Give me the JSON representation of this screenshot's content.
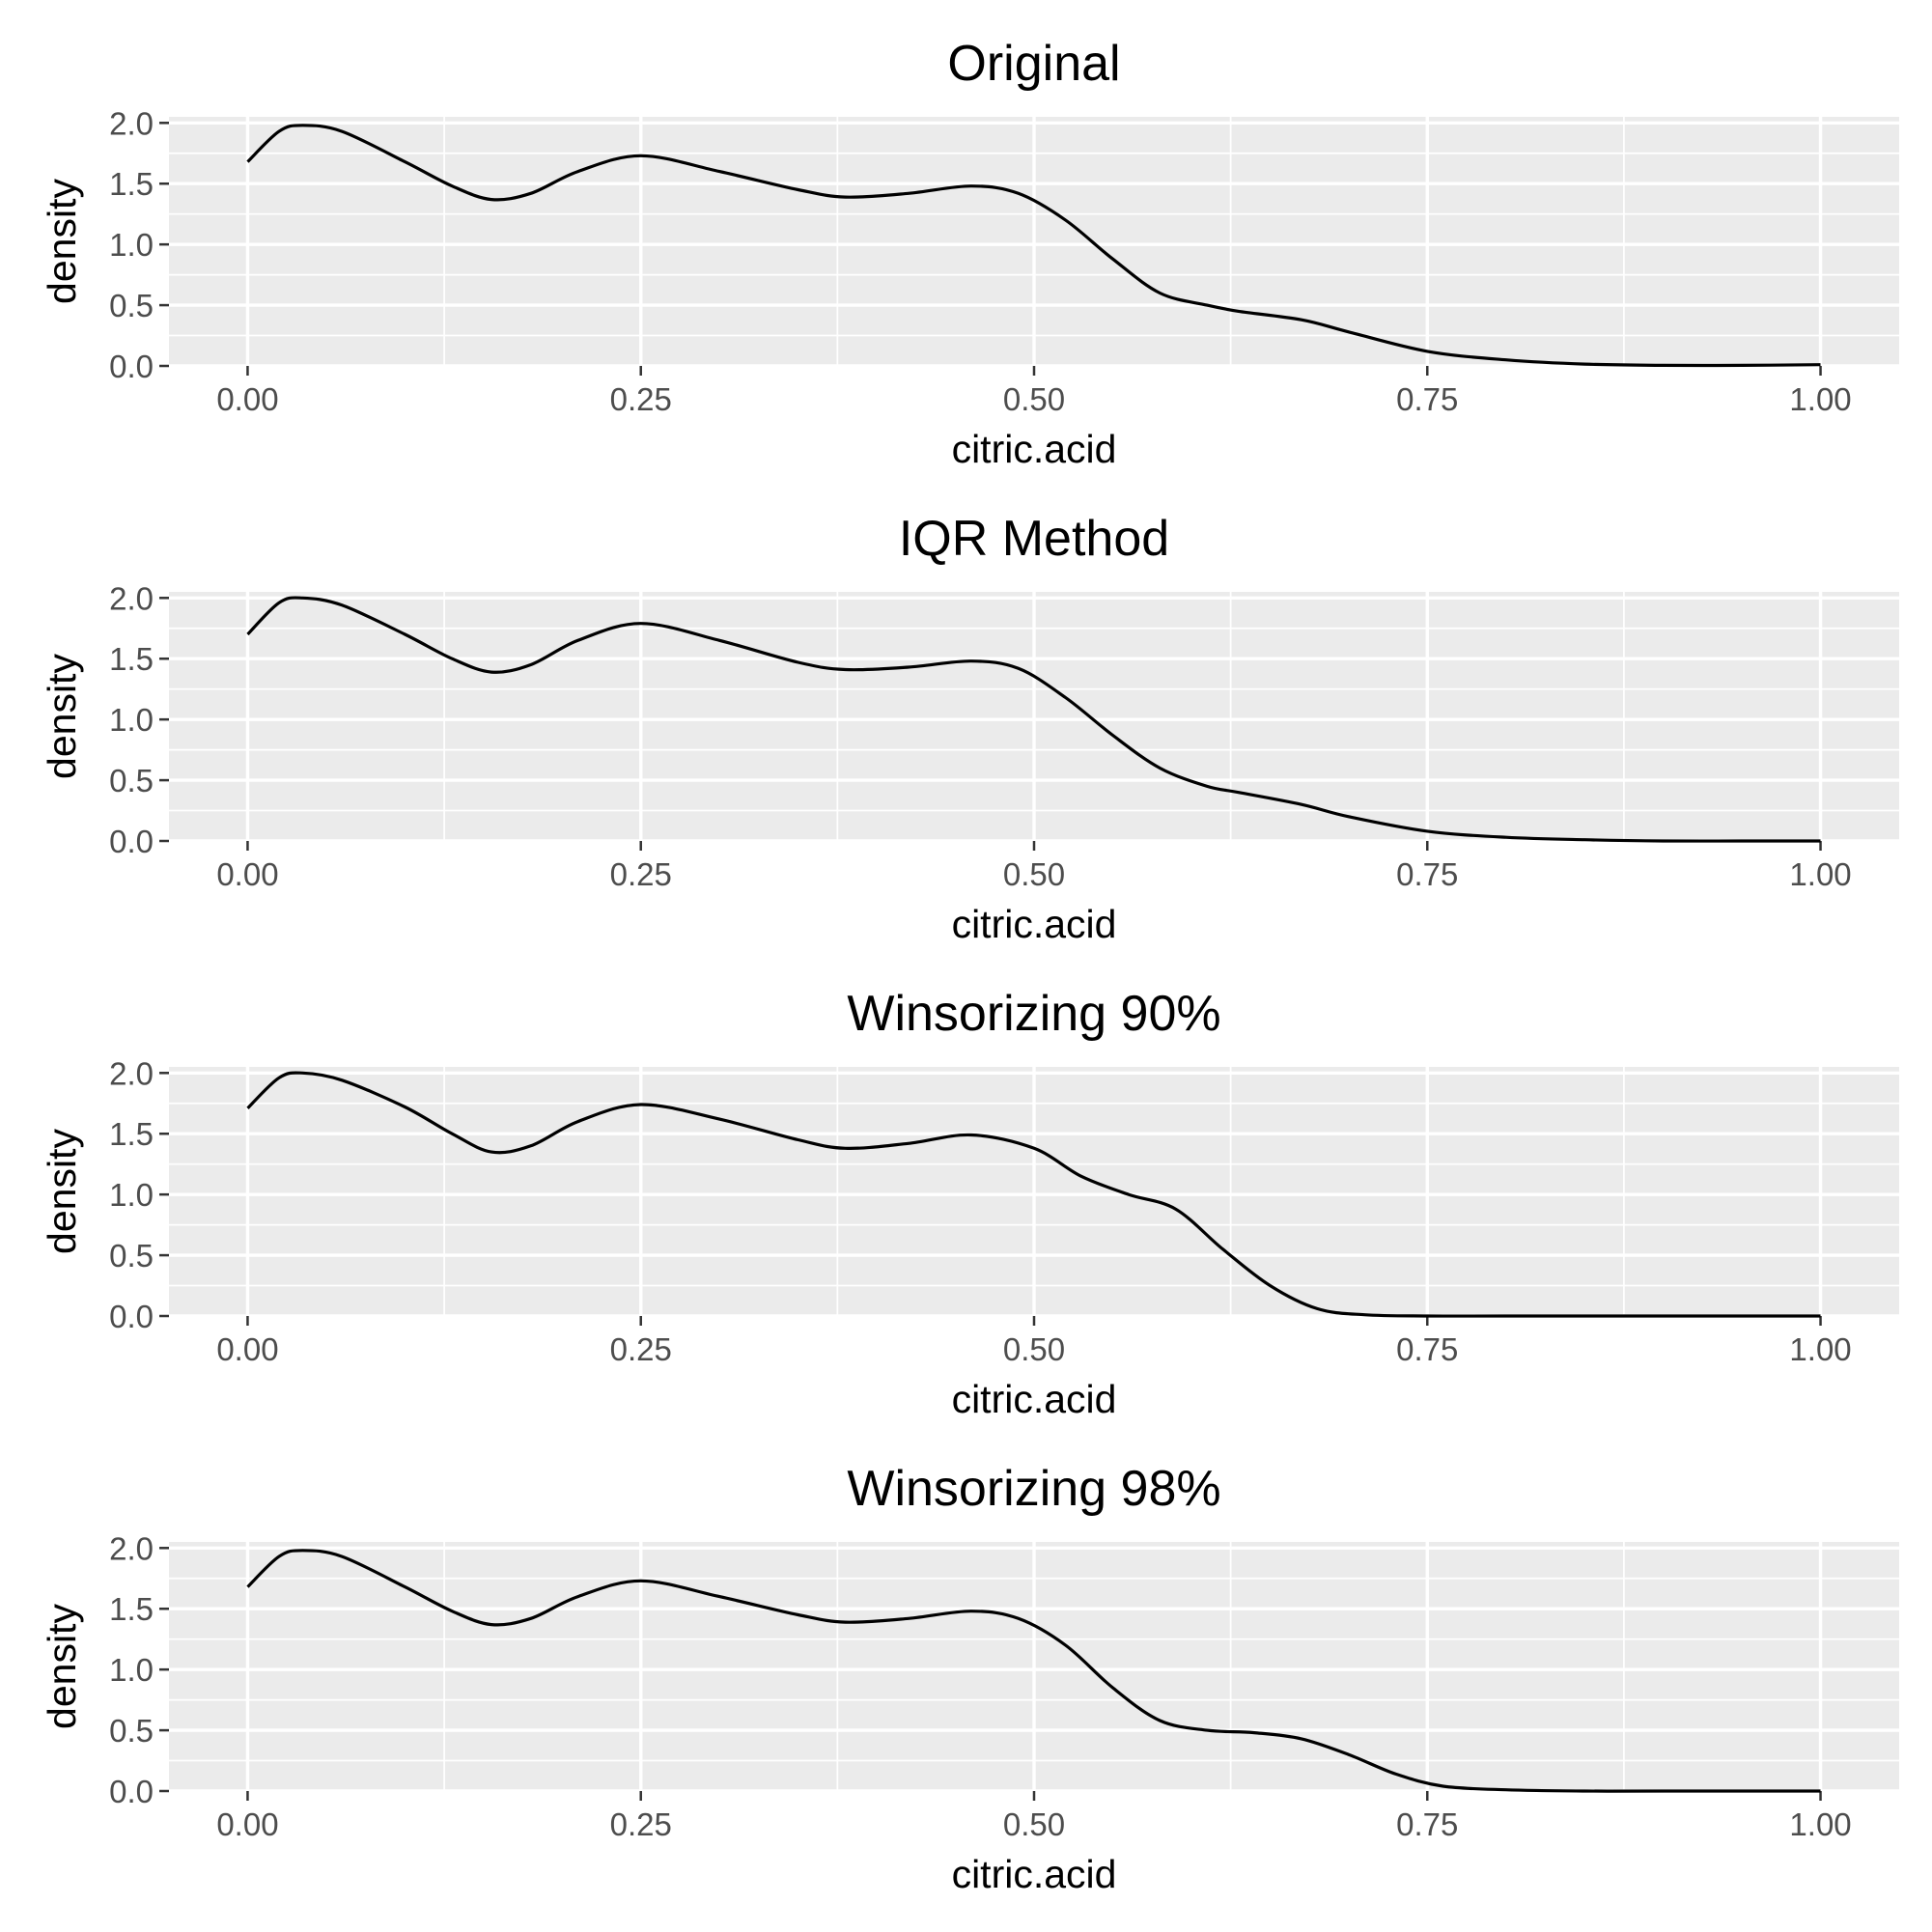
{
  "chart_data": [
    {
      "type": "line",
      "title": "Original",
      "xlabel": "citric.acid",
      "ylabel": "density",
      "xlim": [
        0,
        1
      ],
      "ylim": [
        0,
        2.05
      ],
      "x_ticks": [
        "0.00",
        "0.25",
        "0.50",
        "0.75",
        "1.00"
      ],
      "y_ticks": [
        "0.0",
        "0.5",
        "1.0",
        "1.5",
        "2.0"
      ],
      "grid": true,
      "series": [
        {
          "x": [
            0,
            0.02,
            0.035,
            0.06,
            0.1,
            0.13,
            0.155,
            0.18,
            0.21,
            0.25,
            0.3,
            0.35,
            0.38,
            0.42,
            0.46,
            0.49,
            0.52,
            0.55,
            0.58,
            0.61,
            0.63,
            0.67,
            0.7,
            0.75,
            0.8,
            0.85,
            0.9,
            0.95,
            1.0
          ],
          "y": [
            1.68,
            1.93,
            1.98,
            1.93,
            1.68,
            1.48,
            1.37,
            1.42,
            1.6,
            1.73,
            1.6,
            1.45,
            1.39,
            1.42,
            1.48,
            1.42,
            1.2,
            0.88,
            0.6,
            0.5,
            0.45,
            0.38,
            0.28,
            0.12,
            0.05,
            0.015,
            0.005,
            0.005,
            0.01
          ]
        }
      ]
    },
    {
      "type": "line",
      "title": "IQR Method",
      "xlabel": "citric.acid",
      "ylabel": "density",
      "xlim": [
        0,
        1
      ],
      "ylim": [
        0,
        2.05
      ],
      "x_ticks": [
        "0.00",
        "0.25",
        "0.50",
        "0.75",
        "1.00"
      ],
      "y_ticks": [
        "0.0",
        "0.5",
        "1.0",
        "1.5",
        "2.0"
      ],
      "grid": true,
      "series": [
        {
          "x": [
            0,
            0.02,
            0.035,
            0.06,
            0.1,
            0.13,
            0.155,
            0.18,
            0.21,
            0.25,
            0.3,
            0.35,
            0.38,
            0.42,
            0.46,
            0.49,
            0.52,
            0.55,
            0.58,
            0.61,
            0.63,
            0.67,
            0.7,
            0.75,
            0.8,
            0.85,
            0.9,
            0.95,
            1.0
          ],
          "y": [
            1.7,
            1.96,
            2.0,
            1.94,
            1.7,
            1.5,
            1.39,
            1.45,
            1.65,
            1.79,
            1.65,
            1.47,
            1.41,
            1.43,
            1.48,
            1.42,
            1.18,
            0.87,
            0.6,
            0.45,
            0.4,
            0.3,
            0.2,
            0.08,
            0.03,
            0.01,
            0.0,
            0.0,
            0.0
          ]
        }
      ]
    },
    {
      "type": "line",
      "title": "Winsorizing 90%",
      "xlabel": "citric.acid",
      "ylabel": "density",
      "xlim": [
        0,
        1
      ],
      "ylim": [
        0,
        2.05
      ],
      "x_ticks": [
        "0.00",
        "0.25",
        "0.50",
        "0.75",
        "1.00"
      ],
      "y_ticks": [
        "0.0",
        "0.5",
        "1.0",
        "1.5",
        "2.0"
      ],
      "grid": true,
      "series": [
        {
          "x": [
            0,
            0.02,
            0.035,
            0.06,
            0.1,
            0.13,
            0.155,
            0.18,
            0.21,
            0.25,
            0.3,
            0.35,
            0.38,
            0.42,
            0.46,
            0.5,
            0.53,
            0.56,
            0.59,
            0.62,
            0.65,
            0.68,
            0.71,
            0.75,
            0.8,
            0.9,
            1.0
          ],
          "y": [
            1.71,
            1.96,
            2.0,
            1.94,
            1.72,
            1.5,
            1.35,
            1.4,
            1.6,
            1.74,
            1.62,
            1.45,
            1.38,
            1.42,
            1.49,
            1.38,
            1.15,
            1.0,
            0.88,
            0.55,
            0.25,
            0.06,
            0.01,
            0.0,
            0.0,
            0.0,
            0.0
          ]
        }
      ]
    },
    {
      "type": "line",
      "title": "Winsorizing 98%",
      "xlabel": "citric.acid",
      "ylabel": "density",
      "xlim": [
        0,
        1
      ],
      "ylim": [
        0,
        2.05
      ],
      "x_ticks": [
        "0.00",
        "0.25",
        "0.50",
        "0.75",
        "1.00"
      ],
      "y_ticks": [
        "0.0",
        "0.5",
        "1.0",
        "1.5",
        "2.0"
      ],
      "grid": true,
      "series": [
        {
          "x": [
            0,
            0.02,
            0.035,
            0.06,
            0.1,
            0.13,
            0.155,
            0.18,
            0.21,
            0.25,
            0.3,
            0.35,
            0.38,
            0.42,
            0.46,
            0.49,
            0.52,
            0.55,
            0.58,
            0.61,
            0.64,
            0.67,
            0.7,
            0.73,
            0.76,
            0.8,
            0.85,
            0.9,
            1.0
          ],
          "y": [
            1.68,
            1.93,
            1.98,
            1.93,
            1.68,
            1.48,
            1.37,
            1.42,
            1.6,
            1.73,
            1.6,
            1.45,
            1.39,
            1.42,
            1.48,
            1.42,
            1.2,
            0.85,
            0.58,
            0.5,
            0.48,
            0.43,
            0.3,
            0.14,
            0.04,
            0.01,
            0.0,
            0.0,
            0.0
          ]
        }
      ]
    }
  ]
}
